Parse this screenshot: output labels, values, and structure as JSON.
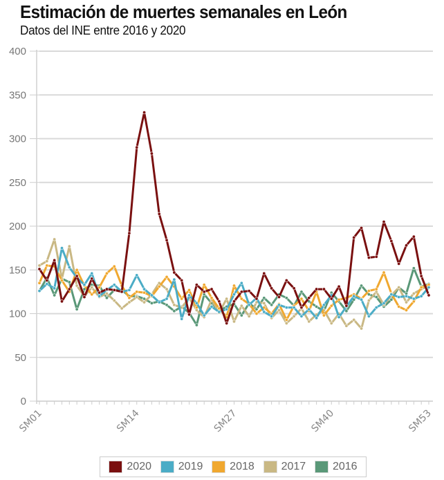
{
  "chart_data": {
    "type": "line",
    "title": "Estimación de muertes semanales en León",
    "subtitle": "Datos del INE entre 2016 y 2020",
    "xlabel": "",
    "ylabel": "",
    "ylim": [
      0,
      400
    ],
    "yticks": [
      "0",
      "50",
      "100",
      "150",
      "200",
      "250",
      "300",
      "350",
      "400"
    ],
    "xtick_labels": [
      "SM01",
      "SM14",
      "SM27",
      "SM40",
      "SM53"
    ],
    "grid": true,
    "legend_position": "bottom",
    "x": [
      "SM01",
      "SM02",
      "SM03",
      "SM04",
      "SM05",
      "SM06",
      "SM07",
      "SM08",
      "SM09",
      "SM10",
      "SM11",
      "SM12",
      "SM13",
      "SM14",
      "SM15",
      "SM16",
      "SM17",
      "SM18",
      "SM19",
      "SM20",
      "SM21",
      "SM22",
      "SM23",
      "SM24",
      "SM25",
      "SM26",
      "SM27",
      "SM28",
      "SM29",
      "SM30",
      "SM31",
      "SM32",
      "SM33",
      "SM34",
      "SM35",
      "SM36",
      "SM37",
      "SM38",
      "SM39",
      "SM40",
      "SM41",
      "SM42",
      "SM43",
      "SM44",
      "SM45",
      "SM46",
      "SM47",
      "SM48",
      "SM49",
      "SM50",
      "SM51",
      "SM52",
      "SM53"
    ],
    "series": [
      {
        "name": "2020",
        "color": "#7a1010",
        "values": [
          151,
          138,
          161,
          114,
          128,
          143,
          119,
          140,
          124,
          128,
          127,
          125,
          192,
          290,
          330,
          283,
          214,
          184,
          147,
          138,
          99,
          133,
          125,
          128,
          114,
          89,
          114,
          125,
          126,
          117,
          146,
          129,
          119,
          138,
          129,
          107,
          118,
          128,
          128,
          117,
          131,
          109,
          187,
          198,
          164,
          165,
          205,
          183,
          157,
          178,
          188,
          143,
          121
        ]
      },
      {
        "name": "2019",
        "color": "#4bacc6",
        "values": [
          126,
          134,
          129,
          175,
          153,
          141,
          133,
          146,
          120,
          127,
          133,
          125,
          127,
          144,
          128,
          121,
          113,
          117,
          139,
          94,
          121,
          112,
          98,
          108,
          102,
          105,
          122,
          135,
          110,
          118,
          102,
          97,
          110,
          107,
          107,
          97,
          105,
          95,
          110,
          121,
          96,
          108,
          120,
          116,
          97,
          107,
          112,
          122,
          119,
          120,
          117,
          120,
          130
        ]
      },
      {
        "name": "2018",
        "color": "#f0a830",
        "values": [
          135,
          155,
          154,
          138,
          125,
          150,
          132,
          122,
          130,
          146,
          154,
          132,
          118,
          125,
          124,
          120,
          131,
          142,
          131,
          117,
          127,
          107,
          133,
          118,
          106,
          96,
          132,
          117,
          111,
          100,
          107,
          100,
          111,
          93,
          109,
          117,
          103,
          125,
          98,
          109,
          116,
          118,
          122,
          117,
          126,
          128,
          147,
          123,
          108,
          104,
          114,
          130,
          133
        ]
      },
      {
        "name": "2017",
        "color": "#c9b884",
        "values": [
          155,
          160,
          185,
          140,
          177,
          132,
          120,
          130,
          119,
          123,
          115,
          106,
          113,
          119,
          113,
          122,
          135,
          128,
          110,
          107,
          118,
          104,
          96,
          116,
          101,
          117,
          91,
          109,
          97,
          113,
          112,
          95,
          104,
          89,
          97,
          106,
          91,
          99,
          104,
          89,
          100,
          86,
          93,
          83,
          115,
          125,
          110,
          121,
          130,
          113,
          123,
          128,
          132
        ]
      },
      {
        "name": "2016",
        "color": "#5a9878",
        "values": [
          126,
          141,
          121,
          140,
          136,
          105,
          128,
          133,
          132,
          118,
          127,
          127,
          120,
          120,
          117,
          112,
          114,
          110,
          103,
          108,
          101,
          87,
          122,
          112,
          103,
          108,
          111,
          98,
          112,
          105,
          118,
          110,
          122,
          118,
          109,
          125,
          114,
          108,
          103,
          124,
          114,
          103,
          116,
          132,
          122,
          119,
          108,
          116,
          130,
          123,
          152,
          131,
          134
        ]
      }
    ]
  }
}
